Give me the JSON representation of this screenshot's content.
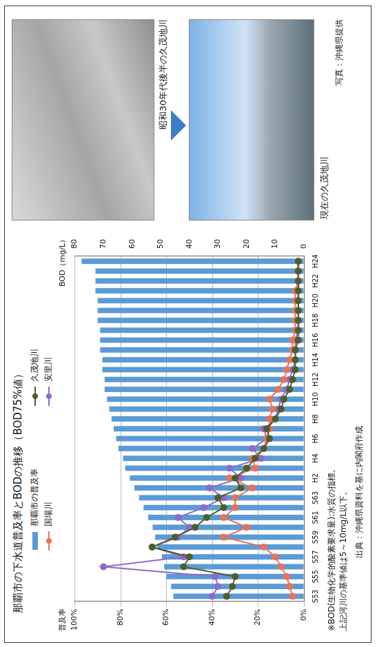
{
  "chart_data": {
    "type": "bar",
    "title": "那覇市の下水道普及率とBODの推移（BOD75%値）",
    "y_label": "普及率",
    "y2_label": "BOD（mg/L）",
    "categories": [
      "S53",
      null,
      "S55",
      null,
      "S57",
      null,
      "S59",
      null,
      "S61",
      null,
      "S63",
      null,
      "H2",
      null,
      "H4",
      null,
      "H6",
      null,
      "H8",
      null,
      "H10",
      null,
      "H12",
      null,
      "H14",
      null,
      "H16",
      null,
      "H18",
      null,
      "H20",
      null,
      "H22",
      null,
      "H24"
    ],
    "series": [
      {
        "name": "那覇市の普及率",
        "type": "bar",
        "color": "#5b9bd5",
        "values": [
          57,
          58,
          60,
          61,
          62,
          64,
          65,
          66,
          68,
          70,
          72,
          74,
          76,
          78,
          79,
          81,
          82,
          83,
          84,
          85,
          86,
          87,
          87,
          88,
          88,
          89,
          89,
          89,
          90,
          90,
          90,
          91,
          91,
          91,
          97
        ]
      },
      {
        "name": "久茂地川",
        "type": "line",
        "axis": "y2",
        "color": "#4e5d2c",
        "marker": "circle",
        "line_style": "solid",
        "values": [
          27,
          25,
          24,
          42,
          40,
          53,
          45,
          38,
          34,
          28,
          30,
          22,
          24,
          20,
          17,
          14,
          12,
          13,
          10,
          8,
          7,
          5,
          4,
          3,
          3,
          3,
          2,
          2,
          2,
          2,
          2,
          2,
          2,
          2,
          2
        ]
      },
      {
        "name": "国場川",
        "type": "line",
        "axis": "y2",
        "color": "#e8735a",
        "marker": "circle",
        "line_style": "solid",
        "values": [
          4,
          5,
          6,
          8,
          10,
          14,
          28,
          20,
          28,
          24,
          24,
          18,
          26,
          17,
          18,
          14,
          13,
          12,
          12,
          11,
          12,
          9,
          7,
          6,
          5,
          4,
          4,
          3,
          3,
          3,
          3,
          3,
          2,
          2,
          2
        ]
      },
      {
        "name": "安里川",
        "type": "line",
        "axis": "y2",
        "color": "#8e6bc9",
        "marker": "circle",
        "line_style": "solid",
        "values": [
          32,
          30,
          31,
          70,
          42,
          53,
          44,
          40,
          44,
          35,
          28,
          33,
          22,
          26,
          15,
          18,
          13,
          14,
          10,
          9,
          8,
          6,
          5,
          4,
          3,
          3,
          3,
          2,
          2,
          2,
          2,
          2,
          2,
          2,
          2
        ]
      }
    ],
    "ylim": [
      0,
      100
    ],
    "yticks": [
      {
        "value": 0,
        "label": "0%"
      },
      {
        "value": 20,
        "label": "20%"
      },
      {
        "value": 40,
        "label": "40%"
      },
      {
        "value": 60,
        "label": "60%"
      },
      {
        "value": 80,
        "label": "80%"
      },
      {
        "value": 100,
        "label": "100%"
      }
    ],
    "y2lim": [
      0,
      80
    ],
    "y2ticks": [
      0,
      10,
      20,
      30,
      40,
      50,
      60,
      70,
      80
    ],
    "grid": true,
    "legend": "top",
    "notes": [
      "※BOD(生物化学的酸素要求量):水質の指標。",
      "上記河川の基準値は5～10mg/L以下。"
    ],
    "source": "出典：沖縄県資料を基に内閣府作成",
    "photo_captions": {
      "before": "昭和30年代後半の久茂地川",
      "after": "現在の久茂地川",
      "credit": "写真：沖縄県提供"
    }
  }
}
